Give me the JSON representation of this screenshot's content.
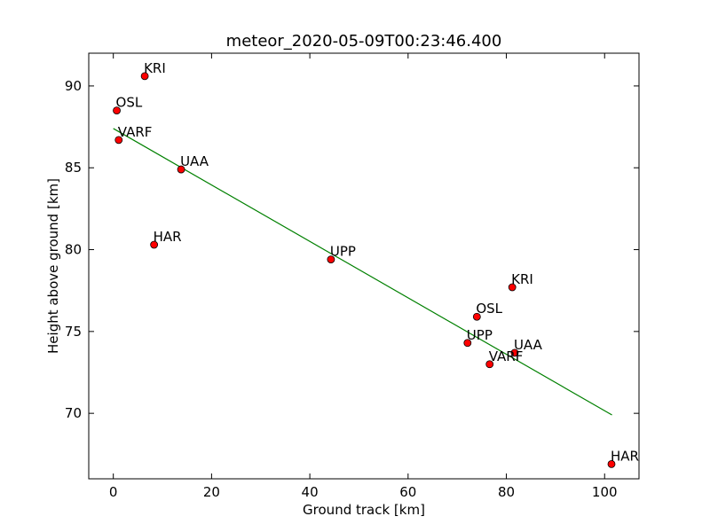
{
  "chart_data": {
    "type": "scatter",
    "title": "meteor_2020-05-09T00:23:46.400",
    "xlabel": "Ground track [km]",
    "ylabel": "Height above ground [km]",
    "xlim": [
      -5,
      107
    ],
    "ylim": [
      66,
      92
    ],
    "xticks": [
      0,
      20,
      40,
      60,
      80,
      100
    ],
    "yticks": [
      70,
      75,
      80,
      85,
      90
    ],
    "grid": false,
    "marker_color": "#ff0000",
    "line_color": "#008000",
    "points": [
      {
        "label": "KRI",
        "x": 6.4,
        "y": 90.6
      },
      {
        "label": "OSL",
        "x": 0.7,
        "y": 88.5
      },
      {
        "label": "VARF",
        "x": 1.1,
        "y": 86.7
      },
      {
        "label": "UAA",
        "x": 13.8,
        "y": 84.9
      },
      {
        "label": "HAR",
        "x": 8.3,
        "y": 80.3
      },
      {
        "label": "UPP",
        "x": 44.3,
        "y": 79.4
      },
      {
        "label": "KRI",
        "x": 81.2,
        "y": 77.7
      },
      {
        "label": "OSL",
        "x": 74.0,
        "y": 75.9
      },
      {
        "label": "UPP",
        "x": 72.1,
        "y": 74.3
      },
      {
        "label": "UAA",
        "x": 81.7,
        "y": 73.7
      },
      {
        "label": "VARF",
        "x": 76.6,
        "y": 73.0
      },
      {
        "label": "HAR",
        "x": 101.4,
        "y": 66.9
      }
    ],
    "fit_line": {
      "x": [
        0,
        101.5
      ],
      "y": [
        87.4,
        69.9
      ]
    }
  }
}
